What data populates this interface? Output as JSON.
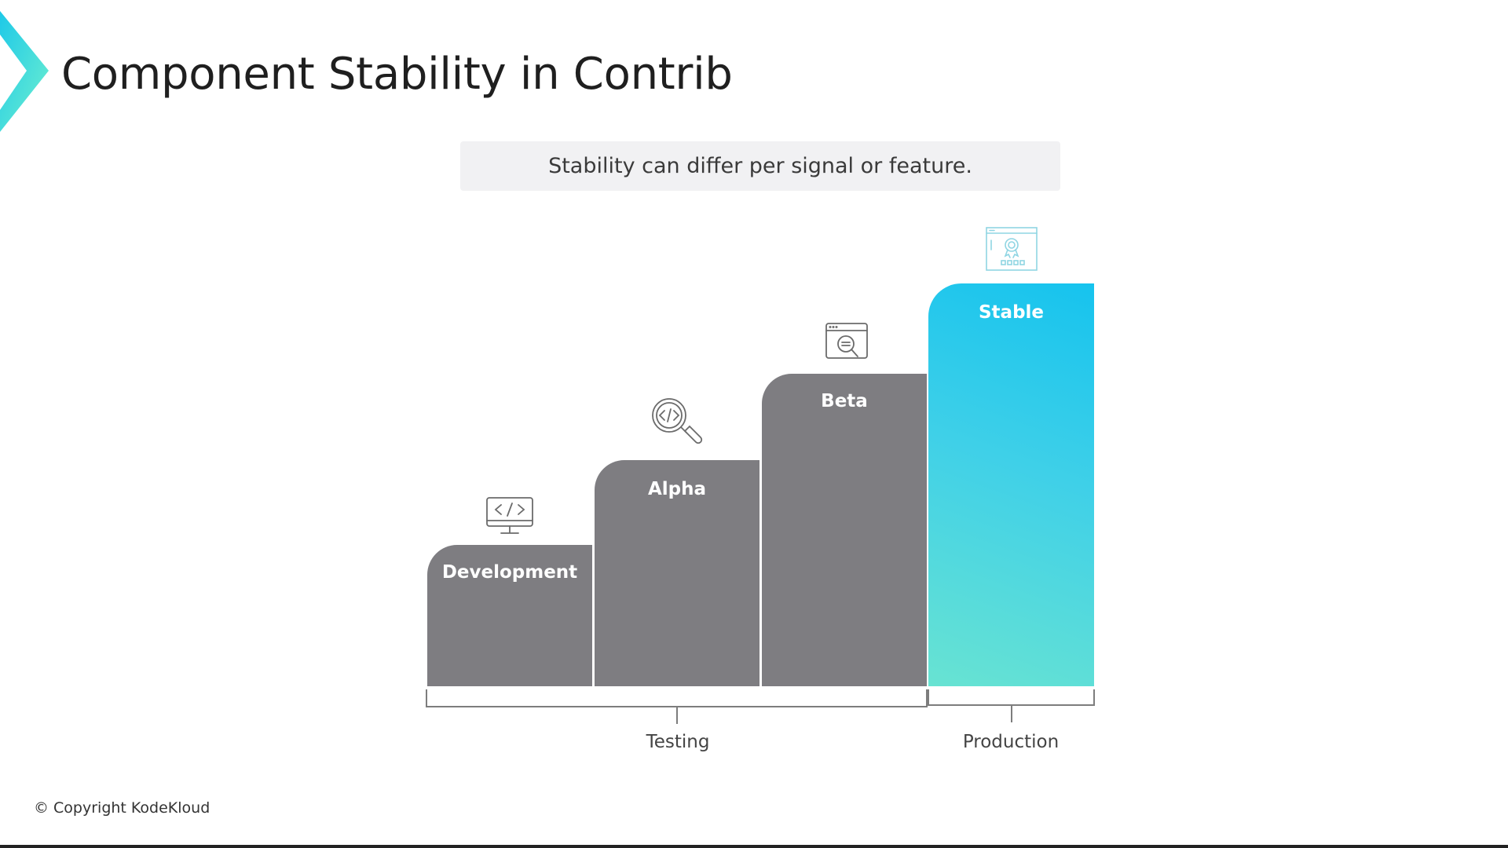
{
  "header": {
    "title": "Component Stability in Contrib",
    "subtitle": "Stability can differ per signal or feature."
  },
  "stages": [
    {
      "label": "Development",
      "icon": "code-monitor-icon"
    },
    {
      "label": "Alpha",
      "icon": "code-magnifier-icon"
    },
    {
      "label": "Beta",
      "icon": "browser-search-icon"
    },
    {
      "label": "Stable",
      "icon": "certificate-browser-icon"
    }
  ],
  "groups": [
    {
      "label": "Testing"
    },
    {
      "label": "Production"
    }
  ],
  "footer": {
    "copyright": "© Copyright KodeKloud"
  },
  "colors": {
    "step_gray": "#7e7d81",
    "stable_top": "#16c3ee",
    "stable_bottom": "#68e3d2",
    "logo_accent": "#2ee6d6"
  }
}
